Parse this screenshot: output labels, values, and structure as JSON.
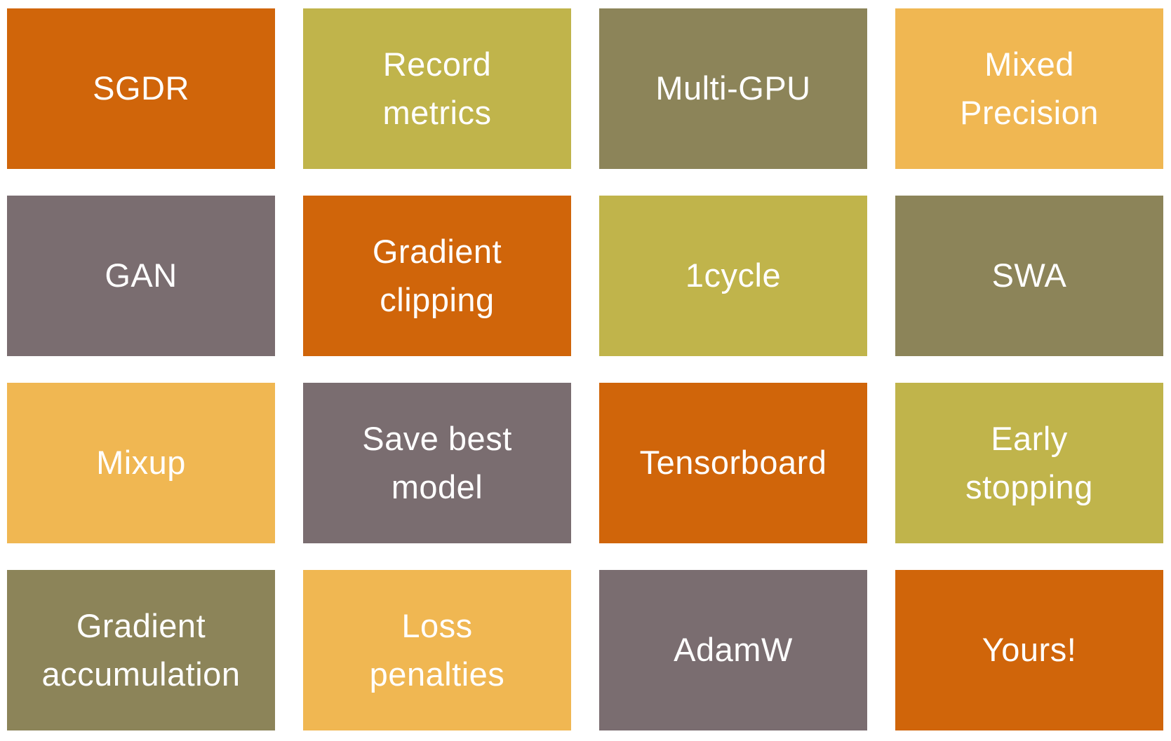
{
  "slide": {
    "background": "#ffffff",
    "text_color": "#ffffff",
    "palette": {
      "orange": "#d0650a",
      "chartreuse": "#c0b44b",
      "khaki": "#8c8459",
      "gold": "#f0b752",
      "taupe": "#7a6d70"
    }
  },
  "tiles": [
    {
      "label": "SGDR",
      "color": "#d0650a"
    },
    {
      "label": "Record\nmetrics",
      "color": "#c0b44b"
    },
    {
      "label": "Multi-GPU",
      "color": "#8c8459"
    },
    {
      "label": "Mixed\nPrecision",
      "color": "#f0b752"
    },
    {
      "label": "GAN",
      "color": "#7a6d70"
    },
    {
      "label": "Gradient\nclipping",
      "color": "#d0650a"
    },
    {
      "label": "1cycle",
      "color": "#c0b44b"
    },
    {
      "label": "SWA",
      "color": "#8c8459"
    },
    {
      "label": "Mixup",
      "color": "#f0b752"
    },
    {
      "label": "Save best\nmodel",
      "color": "#7a6d70"
    },
    {
      "label": "Tensorboard",
      "color": "#d0650a"
    },
    {
      "label": "Early\nstopping",
      "color": "#c0b44b"
    },
    {
      "label": "Gradient\naccumulation",
      "color": "#8c8459"
    },
    {
      "label": "Loss\npenalties",
      "color": "#f0b752"
    },
    {
      "label": "AdamW",
      "color": "#7a6d70"
    },
    {
      "label": "Yours!",
      "color": "#d0650a"
    }
  ]
}
